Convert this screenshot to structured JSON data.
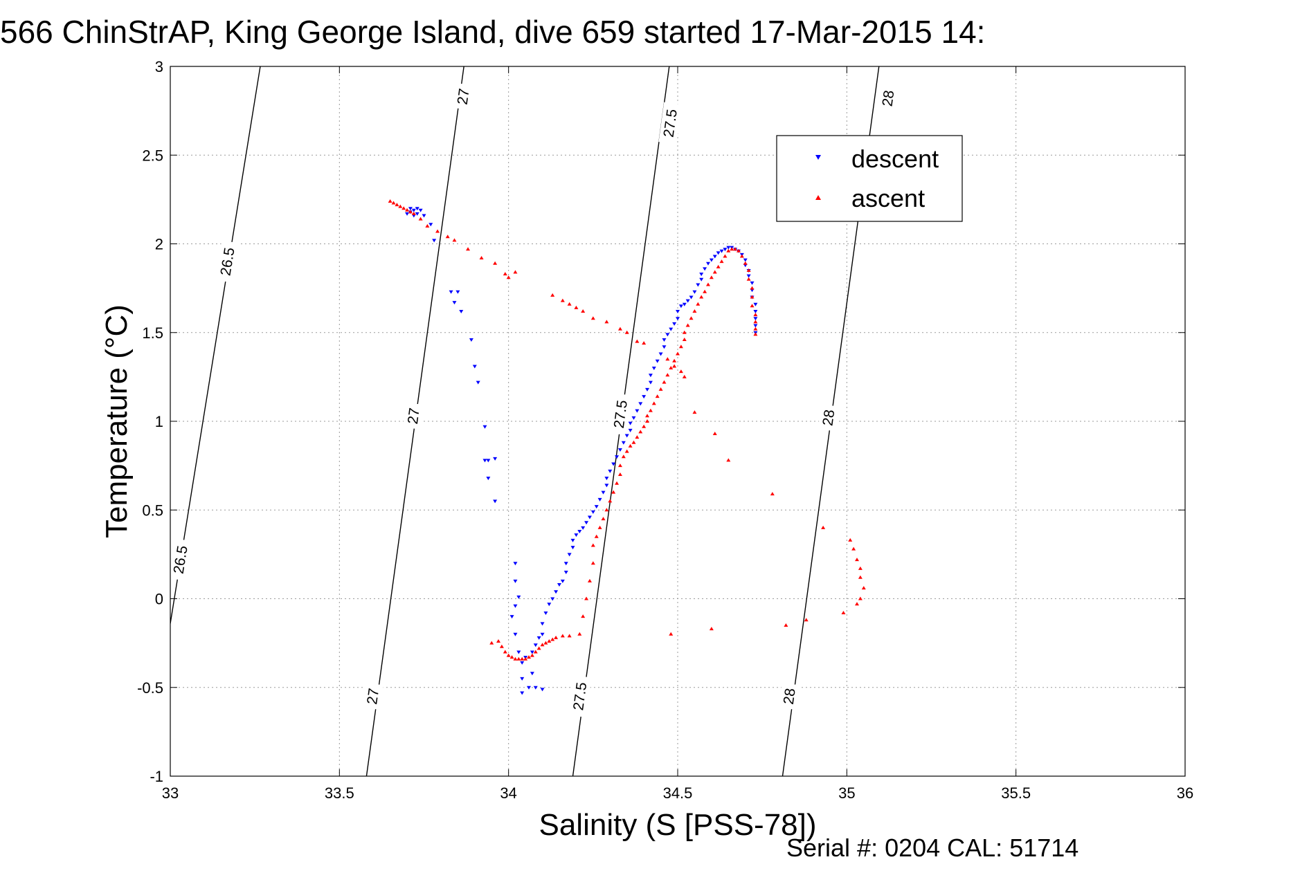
{
  "title": "566 ChinStrAP, King George Island, dive 659 started 17-Mar-2015 14:",
  "footer": "Serial #: 0204  CAL: 51714",
  "colors": {
    "descent": "#0000ff",
    "ascent": "#ff0000",
    "contour": "#000000",
    "grid": "#999999"
  },
  "chart_data": {
    "type": "scatter",
    "xlabel": "Salinity (S [PSS-78])",
    "ylabel": "Temperature (°C)",
    "xlim": [
      33,
      36
    ],
    "ylim": [
      -1,
      3
    ],
    "xticks": [
      33,
      33.5,
      34,
      34.5,
      35,
      35.5,
      36
    ],
    "xtick_labels": [
      "33",
      "33.5",
      "34",
      "34.5",
      "35",
      "35.5",
      "36"
    ],
    "yticks": [
      -1,
      -0.5,
      0,
      0.5,
      1,
      1.5,
      2,
      2.5,
      3
    ],
    "ytick_labels": [
      "-1",
      "-0.5",
      "0",
      "0.5",
      "1",
      "1.5",
      "2",
      "2.5",
      "3"
    ],
    "grid": true,
    "legend_position": "top-right",
    "density_contours": [
      {
        "level": "26.5",
        "points": [
          [
            33.0,
            -0.14
          ],
          [
            33.266,
            3.0
          ]
        ],
        "labels": [
          {
            "s": 33.169,
            "t": 1.9
          },
          {
            "s": 33.03,
            "t": 0.22
          }
        ]
      },
      {
        "level": "27",
        "points": [
          [
            33.58,
            -1.0
          ],
          [
            33.868,
            3.0
          ]
        ],
        "labels": [
          {
            "s": 33.719,
            "t": 1.03
          },
          {
            "s": 33.599,
            "t": -0.55
          },
          {
            "s": 33.866,
            "t": 2.83
          }
        ]
      },
      {
        "level": "27.5",
        "points": [
          [
            34.19,
            -1.0
          ],
          [
            34.475,
            3.0
          ]
        ],
        "labels": [
          {
            "s": 34.331,
            "t": 1.04
          },
          {
            "s": 34.211,
            "t": -0.55
          },
          {
            "s": 34.478,
            "t": 2.68
          }
        ]
      },
      {
        "level": "28",
        "points": [
          [
            34.81,
            -1.0
          ],
          [
            35.095,
            3.0
          ]
        ],
        "labels": [
          {
            "s": 34.946,
            "t": 1.02
          },
          {
            "s": 34.83,
            "t": -0.55
          },
          {
            "s": 35.122,
            "t": 2.82
          }
        ]
      }
    ],
    "series": [
      {
        "name": "descent",
        "marker": "triangle-down",
        "points": [
          [
            33.72,
            2.19
          ],
          [
            33.71,
            2.18
          ],
          [
            33.73,
            2.2
          ],
          [
            33.72,
            2.16
          ],
          [
            33.7,
            2.17
          ],
          [
            33.73,
            2.17
          ],
          [
            33.74,
            2.19
          ],
          [
            33.71,
            2.2
          ],
          [
            33.75,
            2.16
          ],
          [
            33.77,
            2.11
          ],
          [
            33.78,
            2.02
          ],
          [
            33.83,
            1.73
          ],
          [
            33.85,
            1.73
          ],
          [
            33.84,
            1.67
          ],
          [
            33.86,
            1.62
          ],
          [
            33.89,
            1.46
          ],
          [
            33.9,
            1.31
          ],
          [
            33.91,
            1.22
          ],
          [
            33.93,
            0.97
          ],
          [
            33.93,
            0.78
          ],
          [
            33.94,
            0.78
          ],
          [
            33.96,
            0.79
          ],
          [
            33.94,
            0.68
          ],
          [
            33.96,
            0.55
          ],
          [
            34.02,
            0.2
          ],
          [
            34.02,
            0.1
          ],
          [
            34.03,
            0.01
          ],
          [
            34.02,
            -0.04
          ],
          [
            34.01,
            -0.1
          ],
          [
            34.02,
            -0.2
          ],
          [
            34.03,
            -0.3
          ],
          [
            34.04,
            -0.36
          ],
          [
            34.04,
            -0.45
          ],
          [
            34.04,
            -0.53
          ],
          [
            34.06,
            -0.5
          ],
          [
            34.07,
            -0.42
          ],
          [
            34.08,
            -0.5
          ],
          [
            34.1,
            -0.51
          ],
          [
            34.05,
            -0.33
          ],
          [
            34.07,
            -0.3
          ],
          [
            34.08,
            -0.26
          ],
          [
            34.09,
            -0.22
          ],
          [
            34.1,
            -0.2
          ],
          [
            34.1,
            -0.14
          ],
          [
            34.11,
            -0.08
          ],
          [
            34.12,
            -0.03
          ],
          [
            34.13,
            0.0
          ],
          [
            34.14,
            0.04
          ],
          [
            34.15,
            0.08
          ],
          [
            34.16,
            0.1
          ],
          [
            34.17,
            0.15
          ],
          [
            34.17,
            0.2
          ],
          [
            34.18,
            0.25
          ],
          [
            34.19,
            0.29
          ],
          [
            34.19,
            0.33
          ],
          [
            34.2,
            0.36
          ],
          [
            34.21,
            0.38
          ],
          [
            34.22,
            0.4
          ],
          [
            34.23,
            0.43
          ],
          [
            34.24,
            0.46
          ],
          [
            34.25,
            0.49
          ],
          [
            34.26,
            0.52
          ],
          [
            34.27,
            0.56
          ],
          [
            34.28,
            0.6
          ],
          [
            34.29,
            0.64
          ],
          [
            34.29,
            0.68
          ],
          [
            34.3,
            0.72
          ],
          [
            34.31,
            0.76
          ],
          [
            34.32,
            0.8
          ],
          [
            34.33,
            0.84
          ],
          [
            34.34,
            0.88
          ],
          [
            34.35,
            0.92
          ],
          [
            34.36,
            0.95
          ],
          [
            34.36,
            0.99
          ],
          [
            34.37,
            1.02
          ],
          [
            34.38,
            1.06
          ],
          [
            34.39,
            1.1
          ],
          [
            34.4,
            1.14
          ],
          [
            34.41,
            1.18
          ],
          [
            34.42,
            1.22
          ],
          [
            34.42,
            1.26
          ],
          [
            34.43,
            1.3
          ],
          [
            34.44,
            1.34
          ],
          [
            34.45,
            1.38
          ],
          [
            34.46,
            1.42
          ],
          [
            34.46,
            1.46
          ],
          [
            34.47,
            1.49
          ],
          [
            34.48,
            1.52
          ],
          [
            34.49,
            1.55
          ],
          [
            34.5,
            1.58
          ],
          [
            34.5,
            1.62
          ],
          [
            34.51,
            1.65
          ],
          [
            34.52,
            1.66
          ],
          [
            34.53,
            1.68
          ],
          [
            34.54,
            1.7
          ],
          [
            34.55,
            1.73
          ],
          [
            34.56,
            1.77
          ],
          [
            34.57,
            1.8
          ],
          [
            34.57,
            1.83
          ],
          [
            34.58,
            1.86
          ],
          [
            34.59,
            1.89
          ],
          [
            34.6,
            1.91
          ],
          [
            34.61,
            1.93
          ],
          [
            34.62,
            1.95
          ],
          [
            34.63,
            1.96
          ],
          [
            34.64,
            1.97
          ],
          [
            34.65,
            1.98
          ],
          [
            34.66,
            1.98
          ],
          [
            34.67,
            1.97
          ],
          [
            34.68,
            1.96
          ],
          [
            34.69,
            1.94
          ],
          [
            34.7,
            1.91
          ],
          [
            34.7,
            1.88
          ],
          [
            34.71,
            1.85
          ],
          [
            34.71,
            1.82
          ],
          [
            34.72,
            1.78
          ],
          [
            34.72,
            1.74
          ],
          [
            34.72,
            1.7
          ],
          [
            34.73,
            1.66
          ],
          [
            34.73,
            1.62
          ],
          [
            34.73,
            1.58
          ],
          [
            34.73,
            1.54
          ],
          [
            34.73,
            1.5
          ]
        ]
      },
      {
        "name": "ascent",
        "marker": "triangle-up",
        "points": [
          [
            33.65,
            2.24
          ],
          [
            33.66,
            2.23
          ],
          [
            33.67,
            2.22
          ],
          [
            33.68,
            2.21
          ],
          [
            33.69,
            2.2
          ],
          [
            33.7,
            2.19
          ],
          [
            33.71,
            2.18
          ],
          [
            33.72,
            2.17
          ],
          [
            33.74,
            2.14
          ],
          [
            33.76,
            2.1
          ],
          [
            33.79,
            2.07
          ],
          [
            33.82,
            2.04
          ],
          [
            33.84,
            2.02
          ],
          [
            33.88,
            1.97
          ],
          [
            33.92,
            1.92
          ],
          [
            33.96,
            1.89
          ],
          [
            33.99,
            1.83
          ],
          [
            34.0,
            1.81
          ],
          [
            34.02,
            1.84
          ],
          [
            34.13,
            1.71
          ],
          [
            34.16,
            1.68
          ],
          [
            34.18,
            1.66
          ],
          [
            34.2,
            1.64
          ],
          [
            34.22,
            1.62
          ],
          [
            34.25,
            1.58
          ],
          [
            34.29,
            1.56
          ],
          [
            34.33,
            1.52
          ],
          [
            34.35,
            1.5
          ],
          [
            34.38,
            1.45
          ],
          [
            34.4,
            1.44
          ],
          [
            34.47,
            1.35
          ],
          [
            34.49,
            1.31
          ],
          [
            34.51,
            1.28
          ],
          [
            34.52,
            1.25
          ],
          [
            34.55,
            1.05
          ],
          [
            34.61,
            0.93
          ],
          [
            34.65,
            0.78
          ],
          [
            34.78,
            0.59
          ],
          [
            34.93,
            0.4
          ],
          [
            35.01,
            0.33
          ],
          [
            35.02,
            0.28
          ],
          [
            35.03,
            0.22
          ],
          [
            35.04,
            0.17
          ],
          [
            35.04,
            0.12
          ],
          [
            35.05,
            0.06
          ],
          [
            35.04,
            0.0
          ],
          [
            35.03,
            -0.03
          ],
          [
            34.99,
            -0.08
          ],
          [
            34.88,
            -0.12
          ],
          [
            34.82,
            -0.15
          ],
          [
            34.6,
            -0.17
          ],
          [
            34.48,
            -0.2
          ],
          [
            33.95,
            -0.25
          ],
          [
            33.97,
            -0.24
          ],
          [
            33.98,
            -0.27
          ],
          [
            33.99,
            -0.3
          ],
          [
            34.0,
            -0.32
          ],
          [
            34.01,
            -0.33
          ],
          [
            34.02,
            -0.34
          ],
          [
            34.03,
            -0.34
          ],
          [
            34.04,
            -0.34
          ],
          [
            34.05,
            -0.34
          ],
          [
            34.06,
            -0.33
          ],
          [
            34.07,
            -0.32
          ],
          [
            34.08,
            -0.3
          ],
          [
            34.09,
            -0.28
          ],
          [
            34.1,
            -0.26
          ],
          [
            34.11,
            -0.25
          ],
          [
            34.12,
            -0.24
          ],
          [
            34.13,
            -0.23
          ],
          [
            34.14,
            -0.22
          ],
          [
            34.16,
            -0.21
          ],
          [
            34.18,
            -0.21
          ],
          [
            34.21,
            -0.2
          ],
          [
            34.22,
            -0.1
          ],
          [
            34.23,
            0.0
          ],
          [
            34.24,
            0.1
          ],
          [
            34.25,
            0.2
          ],
          [
            34.25,
            0.3
          ],
          [
            34.26,
            0.35
          ],
          [
            34.27,
            0.4
          ],
          [
            34.28,
            0.45
          ],
          [
            34.29,
            0.5
          ],
          [
            34.3,
            0.55
          ],
          [
            34.31,
            0.6
          ],
          [
            34.32,
            0.65
          ],
          [
            34.33,
            0.7
          ],
          [
            34.33,
            0.75
          ],
          [
            34.34,
            0.8
          ],
          [
            34.35,
            0.83
          ],
          [
            34.36,
            0.86
          ],
          [
            34.37,
            0.88
          ],
          [
            34.38,
            0.91
          ],
          [
            34.39,
            0.94
          ],
          [
            34.4,
            0.97
          ],
          [
            34.41,
            1.0
          ],
          [
            34.41,
            1.03
          ],
          [
            34.42,
            1.06
          ],
          [
            34.43,
            1.1
          ],
          [
            34.44,
            1.14
          ],
          [
            34.45,
            1.18
          ],
          [
            34.46,
            1.22
          ],
          [
            34.47,
            1.26
          ],
          [
            34.48,
            1.3
          ],
          [
            34.49,
            1.34
          ],
          [
            34.5,
            1.38
          ],
          [
            34.51,
            1.42
          ],
          [
            34.52,
            1.46
          ],
          [
            34.52,
            1.5
          ],
          [
            34.53,
            1.54
          ],
          [
            34.54,
            1.58
          ],
          [
            34.55,
            1.62
          ],
          [
            34.56,
            1.66
          ],
          [
            34.57,
            1.7
          ],
          [
            34.58,
            1.73
          ],
          [
            34.59,
            1.77
          ],
          [
            34.6,
            1.81
          ],
          [
            34.61,
            1.84
          ],
          [
            34.62,
            1.87
          ],
          [
            34.63,
            1.9
          ],
          [
            34.64,
            1.93
          ],
          [
            34.65,
            1.96
          ],
          [
            34.66,
            1.97
          ],
          [
            34.67,
            1.97
          ],
          [
            34.68,
            1.96
          ],
          [
            34.69,
            1.93
          ],
          [
            34.7,
            1.89
          ],
          [
            34.71,
            1.85
          ],
          [
            34.71,
            1.8
          ],
          [
            34.72,
            1.75
          ],
          [
            34.72,
            1.7
          ],
          [
            34.72,
            1.65
          ],
          [
            34.73,
            1.6
          ],
          [
            34.73,
            1.56
          ],
          [
            34.73,
            1.52
          ],
          [
            34.73,
            1.49
          ]
        ]
      }
    ]
  }
}
